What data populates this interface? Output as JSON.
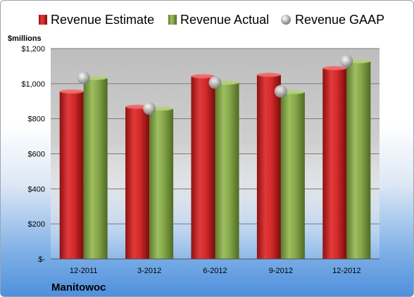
{
  "chart_data": {
    "type": "bar",
    "company": "Manitowoc",
    "ylabel": "$millions",
    "categories": [
      "12-2011",
      "3-2012",
      "6-2012",
      "9-2012",
      "12-2012"
    ],
    "series": [
      {
        "name": "Revenue Estimate",
        "values": [
          955,
          868,
          1042,
          1050,
          1088
        ],
        "color": "#d42a2a",
        "marker": "bar"
      },
      {
        "name": "Revenue Actual",
        "values": [
          1033,
          858,
          1006,
          952,
          1128
        ],
        "color": "#86a84a",
        "marker": "bar"
      },
      {
        "name": "Revenue GAAP",
        "values": [
          1033,
          858,
          1006,
          956,
          1128
        ],
        "color": "#b8b8b8",
        "marker": "sphere"
      }
    ],
    "ylim": [
      0,
      1200
    ],
    "yticks": [
      0,
      200,
      400,
      600,
      800,
      1000,
      1200
    ],
    "ytick_labels": [
      "$-",
      "$200",
      "$400",
      "$600",
      "$800",
      "$1,000",
      "$1,200"
    ],
    "grid": true,
    "legend_position": "top"
  }
}
